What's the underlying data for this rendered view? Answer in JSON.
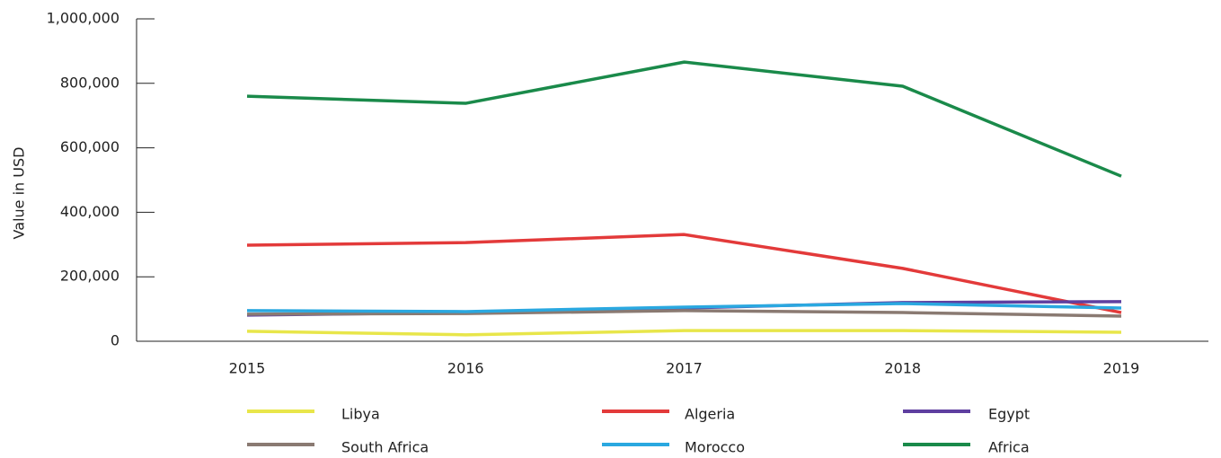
{
  "chart_data": {
    "type": "line",
    "y_label": "Value in USD",
    "x": [
      "2015",
      "2016",
      "2017",
      "2018",
      "2019"
    ],
    "ylim": [
      0,
      1000000
    ],
    "yticks": [
      0,
      {
        "value": 200000,
        "label": "200,000"
      },
      {
        "value": 400000,
        "label": "400,000"
      },
      {
        "value": 600000,
        "label": "600,000"
      },
      {
        "value": 800000,
        "label": "800,000"
      },
      {
        "value": 1000000,
        "label": "1,000,000"
      }
    ],
    "series": [
      {
        "name": "Libya",
        "color": "#e8e64a",
        "values": [
          31000,
          20000,
          33000,
          33000,
          28000
        ]
      },
      {
        "name": "Algeria",
        "color": "#e33a3a",
        "values": [
          298000,
          306000,
          331000,
          226000,
          89000
        ]
      },
      {
        "name": "Egypt",
        "color": "#5e3fa0",
        "values": [
          81000,
          89000,
          103000,
          120000,
          123000
        ]
      },
      {
        "name": "South Africa",
        "color": "#8a7a72",
        "values": [
          84000,
          86000,
          95000,
          89000,
          78000
        ]
      },
      {
        "name": "Morocco",
        "color": "#2aa8e0",
        "values": [
          95000,
          92000,
          106000,
          117000,
          103000
        ]
      },
      {
        "name": "Africa",
        "color": "#1a8a4a",
        "values": [
          760000,
          738000,
          866000,
          791000,
          512000
        ]
      }
    ]
  }
}
